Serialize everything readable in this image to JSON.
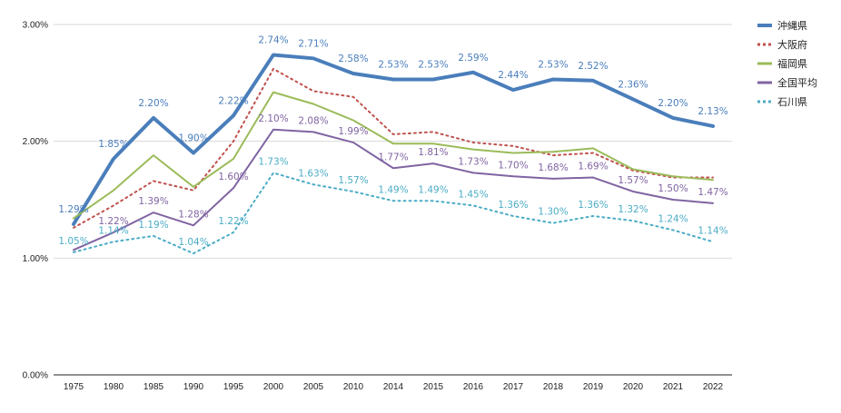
{
  "chart_data": {
    "type": "line",
    "title": "",
    "xlabel": "",
    "ylabel": "",
    "ylim": [
      0,
      3
    ],
    "y_ticks": [
      "0.00%",
      "1.00%",
      "2.00%",
      "3.00%"
    ],
    "y_tick_values": [
      0,
      1,
      2,
      3
    ],
    "categories": [
      "1975",
      "1980",
      "1985",
      "1990",
      "1995",
      "2000",
      "2005",
      "2010",
      "2014",
      "2015",
      "2016",
      "2017",
      "2018",
      "2019",
      "2020",
      "2021",
      "2022"
    ],
    "grid": "horizontal",
    "legend_position": "right",
    "series": [
      {
        "name": "沖縄県",
        "color": "#4a7ebb",
        "style": "solid-thick",
        "values": [
          1.29,
          1.85,
          2.2,
          1.9,
          2.22,
          2.74,
          2.71,
          2.58,
          2.53,
          2.53,
          2.59,
          2.44,
          2.53,
          2.52,
          2.36,
          2.2,
          2.13
        ],
        "labels": [
          "1.29%",
          "1.85%",
          "2.20%",
          "1.90%",
          "2.22%",
          "2.74%",
          "2.71%",
          "2.58%",
          "2.53%",
          "2.53%",
          "2.59%",
          "2.44%",
          "2.53%",
          "2.52%",
          "2.36%",
          "2.20%",
          "2.13%"
        ]
      },
      {
        "name": "大阪府",
        "color": "#c0504d",
        "style": "dotted",
        "values": [
          1.26,
          1.45,
          1.66,
          1.58,
          2.0,
          2.62,
          2.43,
          2.38,
          2.06,
          2.08,
          1.99,
          1.96,
          1.88,
          1.9,
          1.75,
          1.69,
          1.69
        ],
        "labels": []
      },
      {
        "name": "福岡県",
        "color": "#9bbb59",
        "style": "solid",
        "values": [
          1.34,
          1.58,
          1.88,
          1.61,
          1.85,
          2.42,
          2.32,
          2.18,
          1.98,
          1.98,
          1.93,
          1.9,
          1.91,
          1.94,
          1.76,
          1.7,
          1.67
        ],
        "labels": []
      },
      {
        "name": "全国平均",
        "color": "#8064a2",
        "style": "solid",
        "values": [
          1.07,
          1.22,
          1.39,
          1.28,
          1.6,
          2.1,
          2.08,
          1.99,
          1.77,
          1.81,
          1.73,
          1.7,
          1.68,
          1.69,
          1.57,
          1.5,
          1.47
        ],
        "labels": [
          "",
          "1.22%",
          "1.39%",
          "1.28%",
          "1.60%",
          "2.10%",
          "2.08%",
          "1.99%",
          "1.77%",
          "1.81%",
          "1.73%",
          "1.70%",
          "1.68%",
          "1.69%",
          "1.57%",
          "1.50%",
          "1.47%"
        ]
      },
      {
        "name": "石川県",
        "color": "#4bacc6",
        "style": "dotted",
        "values": [
          1.05,
          1.14,
          1.19,
          1.04,
          1.22,
          1.73,
          1.63,
          1.57,
          1.49,
          1.49,
          1.45,
          1.36,
          1.3,
          1.36,
          1.32,
          1.24,
          1.14
        ],
        "labels": [
          "1.05%",
          "1.14%",
          "1.19%",
          "1.04%",
          "1.22%",
          "1.73%",
          "1.63%",
          "1.57%",
          "1.49%",
          "1.49%",
          "1.45%",
          "1.36%",
          "1.30%",
          "1.36%",
          "1.32%",
          "1.24%",
          "1.14%"
        ]
      }
    ]
  }
}
